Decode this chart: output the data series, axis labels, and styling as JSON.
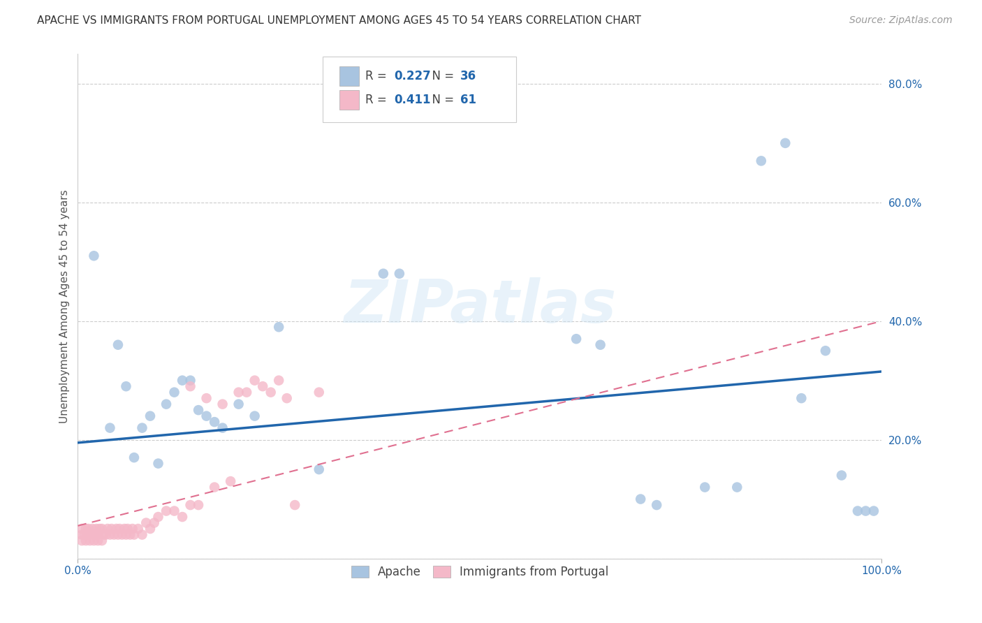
{
  "title": "APACHE VS IMMIGRANTS FROM PORTUGAL UNEMPLOYMENT AMONG AGES 45 TO 54 YEARS CORRELATION CHART",
  "source": "Source: ZipAtlas.com",
  "ylabel": "Unemployment Among Ages 45 to 54 years",
  "xlim": [
    0,
    1.0
  ],
  "ylim": [
    0,
    0.85
  ],
  "ytick_positions": [
    0.0,
    0.2,
    0.4,
    0.6,
    0.8
  ],
  "ytick_labels": [
    "",
    "20.0%",
    "40.0%",
    "60.0%",
    "80.0%"
  ],
  "xtick_positions": [
    0.0,
    1.0
  ],
  "xtick_labels": [
    "0.0%",
    "100.0%"
  ],
  "legend_labels": [
    "Apache",
    "Immigrants from Portugal"
  ],
  "apache_color": "#a8c4e0",
  "portugal_color": "#f4b8c8",
  "apache_line_color": "#2166ac",
  "portugal_line_color": "#e07090",
  "watermark": "ZIPatlas",
  "legend_R_apache": "0.227",
  "legend_N_apache": "36",
  "legend_R_portugal": "0.411",
  "legend_N_portugal": "61",
  "apache_scatter_x": [
    0.02,
    0.04,
    0.05,
    0.06,
    0.07,
    0.08,
    0.09,
    0.1,
    0.11,
    0.12,
    0.13,
    0.14,
    0.15,
    0.16,
    0.17,
    0.18,
    0.2,
    0.22,
    0.25,
    0.38,
    0.4,
    0.62,
    0.65,
    0.7,
    0.72,
    0.78,
    0.82,
    0.85,
    0.88,
    0.9,
    0.93,
    0.95,
    0.97,
    0.98,
    0.99,
    0.3
  ],
  "apache_scatter_y": [
    0.51,
    0.22,
    0.36,
    0.29,
    0.17,
    0.22,
    0.24,
    0.16,
    0.26,
    0.28,
    0.3,
    0.3,
    0.25,
    0.24,
    0.23,
    0.22,
    0.26,
    0.24,
    0.39,
    0.48,
    0.48,
    0.37,
    0.36,
    0.1,
    0.09,
    0.12,
    0.12,
    0.67,
    0.7,
    0.27,
    0.35,
    0.14,
    0.08,
    0.08,
    0.08,
    0.15
  ],
  "portugal_scatter_x": [
    0.005,
    0.005,
    0.005,
    0.008,
    0.01,
    0.01,
    0.012,
    0.013,
    0.015,
    0.015,
    0.018,
    0.02,
    0.02,
    0.022,
    0.023,
    0.025,
    0.025,
    0.027,
    0.03,
    0.03,
    0.032,
    0.035,
    0.037,
    0.04,
    0.042,
    0.045,
    0.048,
    0.05,
    0.052,
    0.055,
    0.058,
    0.06,
    0.062,
    0.065,
    0.068,
    0.07,
    0.075,
    0.08,
    0.085,
    0.09,
    0.095,
    0.1,
    0.11,
    0.12,
    0.13,
    0.14,
    0.15,
    0.17,
    0.19,
    0.21,
    0.23,
    0.25,
    0.27,
    0.3,
    0.14,
    0.16,
    0.18,
    0.2,
    0.22,
    0.24,
    0.26
  ],
  "portugal_scatter_y": [
    0.03,
    0.04,
    0.05,
    0.04,
    0.03,
    0.05,
    0.04,
    0.05,
    0.03,
    0.04,
    0.05,
    0.03,
    0.04,
    0.04,
    0.05,
    0.03,
    0.04,
    0.05,
    0.03,
    0.05,
    0.04,
    0.04,
    0.05,
    0.04,
    0.05,
    0.04,
    0.05,
    0.04,
    0.05,
    0.04,
    0.05,
    0.04,
    0.05,
    0.04,
    0.05,
    0.04,
    0.05,
    0.04,
    0.06,
    0.05,
    0.06,
    0.07,
    0.08,
    0.08,
    0.07,
    0.09,
    0.09,
    0.12,
    0.13,
    0.28,
    0.29,
    0.3,
    0.09,
    0.28,
    0.29,
    0.27,
    0.26,
    0.28,
    0.3,
    0.28,
    0.27
  ],
  "apache_trend_y_start": 0.195,
  "apache_trend_y_end": 0.315,
  "portugal_trend_y_start": 0.055,
  "portugal_trend_y_end": 0.4
}
